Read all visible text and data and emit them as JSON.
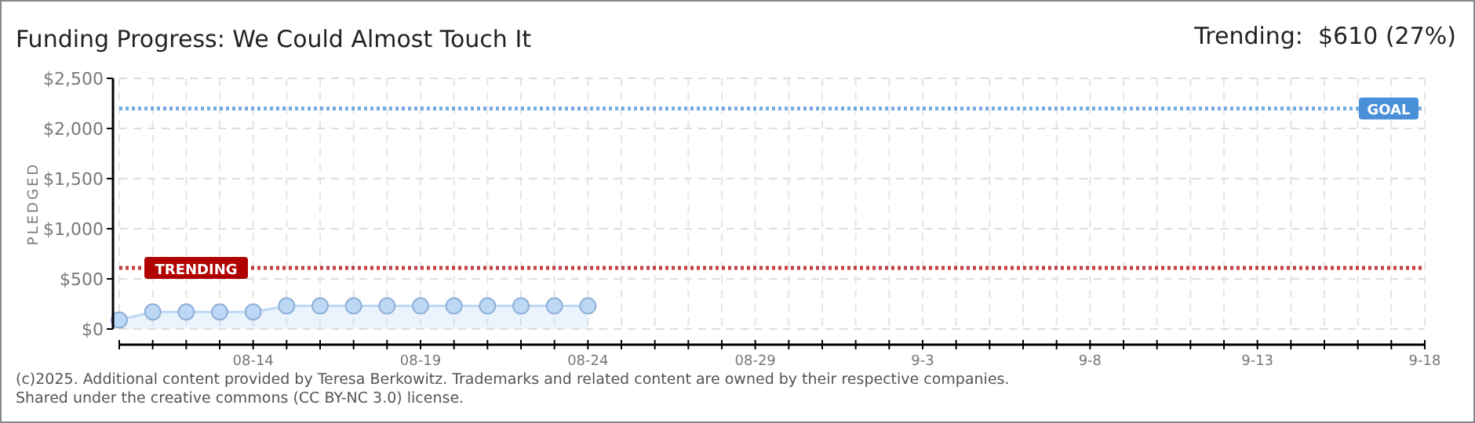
{
  "chart_data": {
    "type": "area",
    "title": "Funding Progress: We Could Almost Touch It",
    "subtitle": "Trending:  $610 (27%)",
    "ylabel": "PLEDGED",
    "x": [
      "2025-08-10",
      "2025-08-11",
      "2025-08-12",
      "2025-08-13",
      "2025-08-14",
      "2025-08-15",
      "2025-08-16",
      "2025-08-17",
      "2025-08-18",
      "2025-08-19",
      "2025-08-20",
      "2025-08-21",
      "2025-08-22",
      "2025-08-23",
      "2025-08-24"
    ],
    "series": [
      {
        "color": "#bcd8f5",
        "values": [
          90,
          170,
          170,
          170,
          170,
          230,
          230,
          230,
          230,
          230,
          230,
          230,
          230,
          230,
          230
        ]
      }
    ],
    "marker": "circle",
    "grid": true,
    "xlim": [
      "2025-08-10",
      "2025-09-18"
    ],
    "xticks": [
      {
        "value": "2025-08-10",
        "label": null
      },
      {
        "value": "2025-08-11",
        "label": null
      },
      {
        "value": "2025-08-12",
        "label": null
      },
      {
        "value": "2025-08-13",
        "label": null
      },
      {
        "value": "2025-08-14",
        "label": "08-14"
      },
      {
        "value": "2025-08-15",
        "label": null
      },
      {
        "value": "2025-08-16",
        "label": null
      },
      {
        "value": "2025-08-17",
        "label": null
      },
      {
        "value": "2025-08-18",
        "label": null
      },
      {
        "value": "2025-08-19",
        "label": "08-19"
      },
      {
        "value": "2025-08-20",
        "label": null
      },
      {
        "value": "2025-08-21",
        "label": null
      },
      {
        "value": "2025-08-22",
        "label": null
      },
      {
        "value": "2025-08-23",
        "label": null
      },
      {
        "value": "2025-08-24",
        "label": "08-24"
      },
      {
        "value": "2025-08-25",
        "label": null
      },
      {
        "value": "2025-08-26",
        "label": null
      },
      {
        "value": "2025-08-27",
        "label": null
      },
      {
        "value": "2025-08-28",
        "label": null
      },
      {
        "value": "2025-08-29",
        "label": "08-29"
      },
      {
        "value": "2025-08-30",
        "label": null
      },
      {
        "value": "2025-08-31",
        "label": null
      },
      {
        "value": "2025-09-01",
        "label": null
      },
      {
        "value": "2025-09-02",
        "label": null
      },
      {
        "value": "2025-09-03",
        "label": "9-3"
      },
      {
        "value": "2025-09-04",
        "label": null
      },
      {
        "value": "2025-09-05",
        "label": null
      },
      {
        "value": "2025-09-06",
        "label": null
      },
      {
        "value": "2025-09-07",
        "label": null
      },
      {
        "value": "2025-09-08",
        "label": "9-8"
      },
      {
        "value": "2025-09-09",
        "label": null
      },
      {
        "value": "2025-09-10",
        "label": null
      },
      {
        "value": "2025-09-11",
        "label": null
      },
      {
        "value": "2025-09-12",
        "label": null
      },
      {
        "value": "2025-09-13",
        "label": "9-13"
      },
      {
        "value": "2025-09-14",
        "label": null
      },
      {
        "value": "2025-09-15",
        "label": null
      },
      {
        "value": "2025-09-16",
        "label": null
      },
      {
        "value": "2025-09-17",
        "label": null
      },
      {
        "value": "2025-09-18",
        "label": "9-18"
      }
    ],
    "ylim": [
      0,
      2500
    ],
    "yticks": [
      {
        "value": 0,
        "label": "$0"
      },
      {
        "value": 500,
        "label": "$500"
      },
      {
        "value": 1000,
        "label": "$1,000"
      },
      {
        "value": 1500,
        "label": "$1,500"
      },
      {
        "value": 2000,
        "label": "$2,000"
      },
      {
        "value": 2500,
        "label": "$2,500"
      }
    ],
    "ref_lines": [
      {
        "axis": "y",
        "value": 2200,
        "label": "GOAL",
        "color": "#4a90d9",
        "line_style": "dotted"
      },
      {
        "axis": "y",
        "value": 610,
        "label": "TRENDING",
        "color": "#b00000",
        "line_style": "dotted"
      }
    ],
    "annotations": [
      "(c)2025. Additional content provided by Teresa Berkowitz. Trademarks and related content are owned by their respective companies.",
      "Shared under the creative commons (CC BY-NC 3.0) license."
    ]
  }
}
